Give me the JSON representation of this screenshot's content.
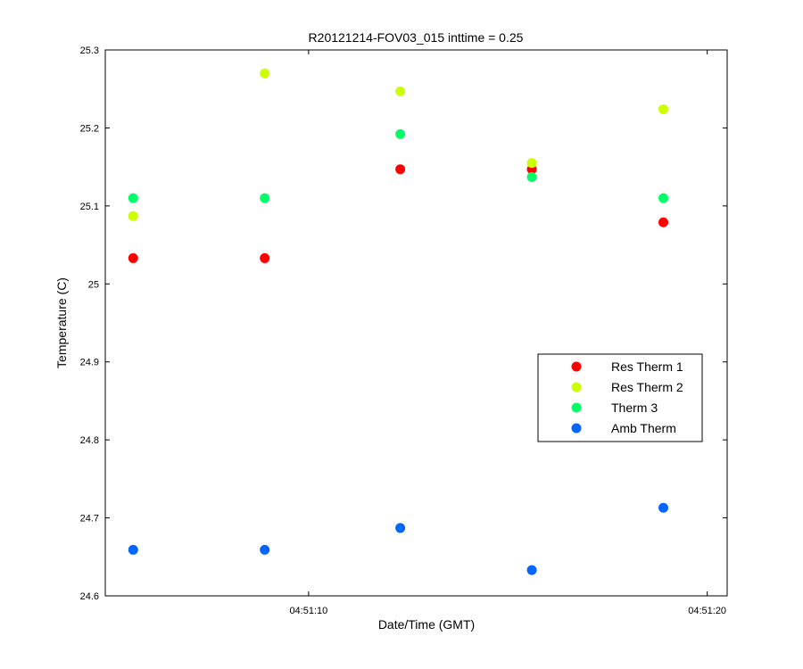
{
  "chart_data": {
    "type": "scatter",
    "title": "R20121214-FOV03_015 inttime = 0.25",
    "xlabel": "Date/Time (GMT)",
    "ylabel": "Temperature (C)",
    "x_tick_labels": [
      "04:51:10",
      "04:51:20"
    ],
    "x_tick_values": [
      10,
      20
    ],
    "xlim": [
      4.9,
      20.5
    ],
    "ylim": [
      24.6,
      25.3
    ],
    "y_ticks": [
      "24.6",
      "24.7",
      "24.8",
      "24.9",
      "25",
      "25.1",
      "25.2",
      "25.3"
    ],
    "grid": false,
    "legend_position": "right",
    "x": [
      5.6,
      8.9,
      12.3,
      15.6,
      18.9
    ],
    "series": [
      {
        "name": "Res Therm 1",
        "color": "#ff0000",
        "values": [
          25.033,
          25.033,
          25.147,
          25.147,
          25.079
        ]
      },
      {
        "name": "Res Therm 2",
        "color": "#ccff00",
        "values": [
          25.087,
          25.27,
          25.247,
          25.155,
          25.224
        ]
      },
      {
        "name": "Therm 3",
        "color": "#00ff66",
        "values": [
          25.11,
          25.11,
          25.192,
          25.137,
          25.11
        ]
      },
      {
        "name": "Amb Therm",
        "color": "#0066ff",
        "values": [
          24.659,
          24.659,
          24.687,
          24.633,
          24.713
        ]
      }
    ]
  }
}
